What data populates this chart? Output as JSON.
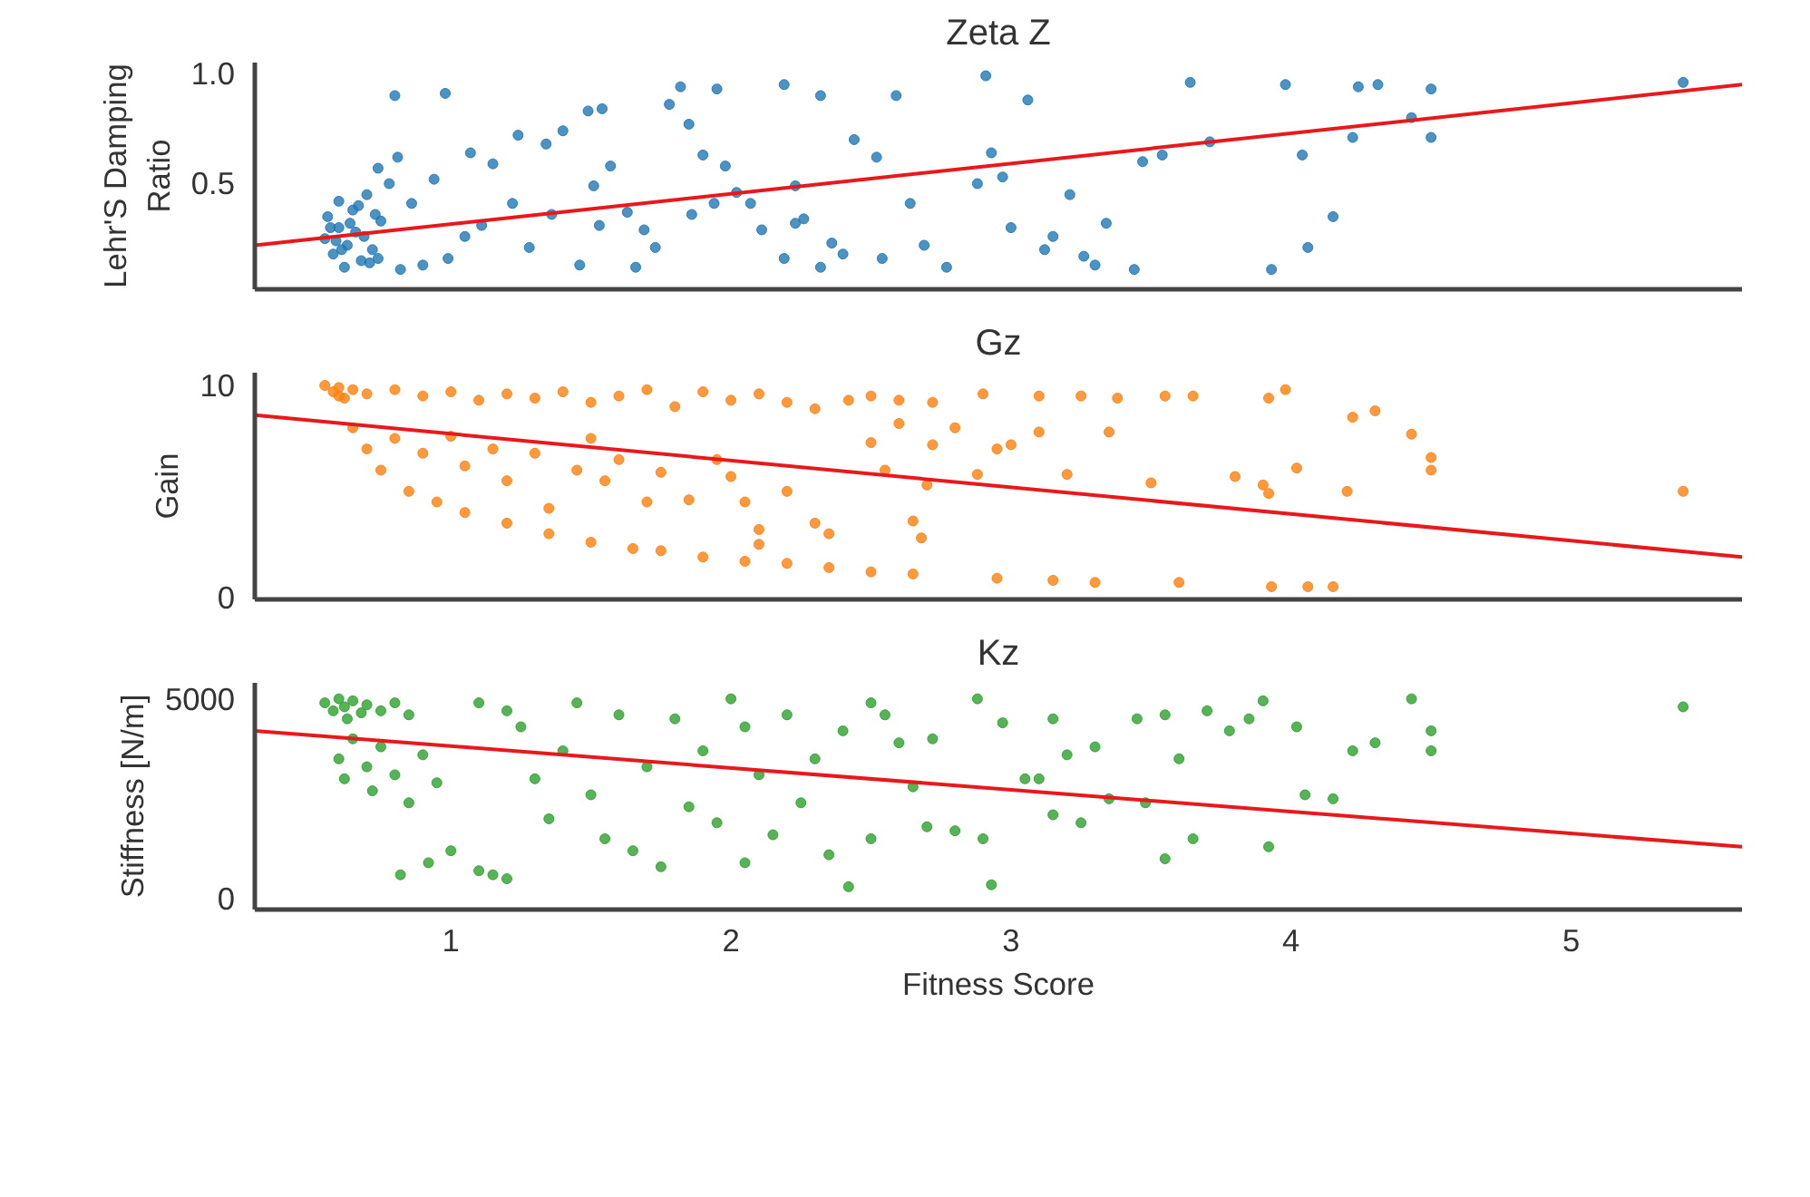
{
  "chart_data": [
    {
      "type": "scatter",
      "title": "Zeta Z",
      "ylabel": "Lehr'S Damping\nRatio",
      "xlim": [
        0.3,
        5.61
      ],
      "ylim": [
        0.02,
        1.05
      ],
      "xticks": [
        1,
        2,
        3,
        4,
        5
      ],
      "yticks": [
        0.5,
        {
          "value": 1,
          "label": "1.0"
        }
      ],
      "tick_labels": "y",
      "grid": false,
      "series": [
        {
          "marker": "circle",
          "color": "#1f77b4",
          "x": [
            0.55,
            0.56,
            0.58,
            0.6,
            0.6,
            0.62,
            0.63,
            0.65,
            0.66,
            0.68,
            0.7,
            0.72,
            0.75,
            0.78,
            0.57,
            0.59,
            0.61,
            0.64,
            0.67,
            0.69,
            0.71,
            0.73,
            0.8,
            0.98,
            1.49,
            1.54,
            1.82,
            1.95,
            2.19,
            2.32,
            2.59,
            2.91,
            3.06,
            3.64,
            3.98,
            4.24,
            4.31,
            4.5,
            5.4,
            4.5,
            4.43,
            4.22,
            4.04,
            4.15,
            4.06,
            3.93,
            3.71,
            3.54,
            3.47,
            3.44,
            3.34,
            3.3,
            3.26,
            3.21,
            3.15,
            3.12,
            3.0,
            2.97,
            2.93,
            2.88,
            2.77,
            2.69,
            2.64,
            2.52,
            2.44,
            2.54,
            2.32,
            2.26,
            2.23,
            2.19,
            2.11,
            2.02,
            1.98,
            1.9,
            1.85,
            1.78,
            1.73,
            1.66,
            1.63,
            1.57,
            1.51,
            1.4,
            1.34,
            1.46,
            1.36,
            1.24,
            1.22,
            1.15,
            1.07,
            1.05,
            0.99,
            0.94,
            0.86,
            0.81,
            0.74,
            0.74,
            0.82,
            0.9,
            1.11,
            1.28,
            1.53,
            1.69,
            1.86,
            1.94,
            2.07,
            2.23,
            2.36,
            2.4
          ],
          "values": [
            0.25,
            0.35,
            0.18,
            0.3,
            0.42,
            0.12,
            0.22,
            0.38,
            0.28,
            0.15,
            0.45,
            0.2,
            0.33,
            0.5,
            0.3,
            0.24,
            0.2,
            0.32,
            0.4,
            0.26,
            0.14,
            0.36,
            0.9,
            0.91,
            0.83,
            0.84,
            0.94,
            0.93,
            0.95,
            0.9,
            0.9,
            0.99,
            0.88,
            0.96,
            0.95,
            0.94,
            0.95,
            0.93,
            0.96,
            0.71,
            0.8,
            0.71,
            0.63,
            0.35,
            0.21,
            0.11,
            0.69,
            0.63,
            0.6,
            0.11,
            0.32,
            0.13,
            0.17,
            0.45,
            0.26,
            0.2,
            0.3,
            0.53,
            0.64,
            0.5,
            0.12,
            0.22,
            0.41,
            0.62,
            0.7,
            0.16,
            0.12,
            0.34,
            0.49,
            0.16,
            0.29,
            0.46,
            0.58,
            0.63,
            0.77,
            0.86,
            0.21,
            0.12,
            0.37,
            0.58,
            0.49,
            0.74,
            0.68,
            0.13,
            0.36,
            0.72,
            0.41,
            0.59,
            0.64,
            0.26,
            0.16,
            0.52,
            0.41,
            0.62,
            0.57,
            0.16,
            0.11,
            0.13,
            0.31,
            0.21,
            0.31,
            0.29,
            0.36,
            0.41,
            0.41,
            0.32,
            0.23,
            0.18
          ]
        },
        {
          "type": "line",
          "marker": "none",
          "color": "#e8191c",
          "x": [
            0.3,
            5.61
          ],
          "values": [
            0.22,
            0.95
          ]
        }
      ]
    },
    {
      "type": "scatter",
      "title": "Gz",
      "ylabel": "Gain",
      "xlim": [
        0.3,
        5.61
      ],
      "ylim": [
        -0.1,
        10.6
      ],
      "xticks": [
        1,
        2,
        3,
        4,
        5
      ],
      "yticks": [
        0,
        10
      ],
      "tick_labels": "y",
      "grid": false,
      "series": [
        {
          "marker": "circle",
          "color": "#ff7f0e",
          "x": [
            0.6,
            0.65,
            0.7,
            0.75,
            0.85,
            0.95,
            1.05,
            1.2,
            1.35,
            1.5,
            1.65,
            1.75,
            1.9,
            2.05,
            2.2,
            2.35,
            2.5,
            2.65,
            2.95,
            3.15,
            3.3,
            3.6,
            3.93,
            4.06,
            4.15,
            0.55,
            0.58,
            0.6,
            0.62,
            0.65,
            0.7,
            0.8,
            0.9,
            1.0,
            1.1,
            1.2,
            1.3,
            1.4,
            1.5,
            1.6,
            1.7,
            1.8,
            1.9,
            2.0,
            2.1,
            2.2,
            2.3,
            2.42,
            2.5,
            2.6,
            2.72,
            2.9,
            3.1,
            3.25,
            3.38,
            3.55,
            3.65,
            3.98,
            3.92,
            4.3,
            4.22,
            4.43,
            4.5,
            4.5,
            5.4,
            0.8,
            0.9,
            1.0,
            1.05,
            1.15,
            1.2,
            1.3,
            1.35,
            1.45,
            1.5,
            1.55,
            1.6,
            1.7,
            1.75,
            1.85,
            1.95,
            2.0,
            2.05,
            2.1,
            2.1,
            2.2,
            2.3,
            2.35,
            2.5,
            2.55,
            2.6,
            2.65,
            2.7,
            2.72,
            2.8,
            2.88,
            2.95,
            3.1,
            3.2,
            3.35,
            3.5,
            3.8,
            3.9,
            3.92,
            4.02,
            4.2,
            2.68,
            3.0
          ],
          "values": [
            9.5,
            8.0,
            7.0,
            6.0,
            5.0,
            4.5,
            4.0,
            3.5,
            3.0,
            2.6,
            2.3,
            2.2,
            1.9,
            1.7,
            1.6,
            1.4,
            1.2,
            1.1,
            0.9,
            0.8,
            0.7,
            0.7,
            0.5,
            0.5,
            0.5,
            10,
            9.7,
            9.9,
            9.4,
            9.8,
            9.6,
            9.8,
            9.5,
            9.7,
            9.3,
            9.6,
            9.4,
            9.7,
            9.2,
            9.5,
            9.8,
            9.0,
            9.7,
            9.3,
            9.6,
            9.2,
            8.9,
            9.3,
            9.5,
            9.3,
            9.2,
            9.6,
            9.5,
            9.5,
            9.4,
            9.5,
            9.5,
            9.8,
            9.4,
            8.8,
            8.5,
            7.7,
            6.6,
            6.0,
            5.0,
            7.5,
            6.8,
            7.6,
            6.2,
            7.0,
            5.5,
            6.8,
            4.2,
            6.0,
            7.5,
            5.5,
            6.5,
            4.5,
            5.9,
            4.6,
            6.5,
            5.7,
            4.5,
            3.2,
            2.5,
            5.0,
            3.5,
            3.0,
            7.3,
            6.0,
            8.2,
            3.6,
            5.3,
            7.2,
            8.0,
            5.8,
            7.0,
            7.8,
            5.8,
            7.8,
            5.4,
            5.7,
            5.3,
            4.9,
            6.1,
            5.0,
            2.8,
            7.2
          ]
        },
        {
          "type": "line",
          "marker": "none",
          "color": "#e8191c",
          "x": [
            0.3,
            5.61
          ],
          "values": [
            8.6,
            1.9
          ]
        }
      ]
    },
    {
      "type": "scatter",
      "title": "Kz",
      "xlabel": "Fitness Score",
      "ylabel": "Stiffness [N/m]",
      "xlim": [
        0.3,
        5.61
      ],
      "ylim": [
        -270,
        5400
      ],
      "xticks": [
        1,
        2,
        3,
        4,
        5
      ],
      "yticks": [
        0,
        5000
      ],
      "grid": false,
      "series": [
        {
          "marker": "circle",
          "color": "#2ca02c",
          "x": [
            0.55,
            0.58,
            0.6,
            0.62,
            0.63,
            0.65,
            0.68,
            0.7,
            0.75,
            0.8,
            0.85,
            0.6,
            0.62,
            0.65,
            0.7,
            0.72,
            0.75,
            0.8,
            0.85,
            0.9,
            0.95,
            0.82,
            0.92,
            1.0,
            1.1,
            1.15,
            1.2,
            1.1,
            1.2,
            1.25,
            1.3,
            1.35,
            1.4,
            1.45,
            1.5,
            1.55,
            1.6,
            1.65,
            1.7,
            1.75,
            1.8,
            1.85,
            1.9,
            1.95,
            2.0,
            2.05,
            2.05,
            2.1,
            2.15,
            2.2,
            2.25,
            2.3,
            2.35,
            2.4,
            2.42,
            2.5,
            2.5,
            2.55,
            2.6,
            2.65,
            2.7,
            2.72,
            2.8,
            2.88,
            2.9,
            2.93,
            2.97,
            3.05,
            3.1,
            3.15,
            3.15,
            3.2,
            3.25,
            3.3,
            3.35,
            3.45,
            3.48,
            3.55,
            3.55,
            3.6,
            3.65,
            3.7,
            3.78,
            3.85,
            3.9,
            3.92,
            4.02,
            4.05,
            4.15,
            4.22,
            4.3,
            4.43,
            4.5,
            4.5,
            5.4
          ],
          "values": [
            4900,
            4700,
            5000,
            4800,
            4500,
            4950,
            4650,
            4850,
            4700,
            4900,
            4600,
            3500,
            3000,
            4000,
            3300,
            2700,
            3800,
            3100,
            2400,
            3600,
            2900,
            600,
            900,
            1200,
            700,
            600,
            500,
            4900,
            4700,
            4300,
            3000,
            2000,
            3700,
            4900,
            2600,
            1500,
            4600,
            1200,
            3300,
            800,
            4500,
            2300,
            3700,
            1900,
            5000,
            900,
            4300,
            3100,
            1600,
            4600,
            2400,
            3500,
            1100,
            4200,
            300,
            4900,
            1500,
            4600,
            3900,
            2800,
            1800,
            4000,
            1700,
            5000,
            1500,
            350,
            4400,
            3000,
            3000,
            4500,
            2100,
            3600,
            1900,
            3800,
            2500,
            4500,
            2400,
            4600,
            1000,
            3500,
            1500,
            4700,
            4200,
            4500,
            4950,
            1300,
            4300,
            2600,
            2500,
            3700,
            3900,
            5000,
            4200,
            3700,
            4800
          ]
        },
        {
          "type": "line",
          "marker": "none",
          "color": "#e8191c",
          "x": [
            0.3,
            5.61
          ],
          "values": [
            4200,
            1300
          ]
        }
      ]
    }
  ]
}
